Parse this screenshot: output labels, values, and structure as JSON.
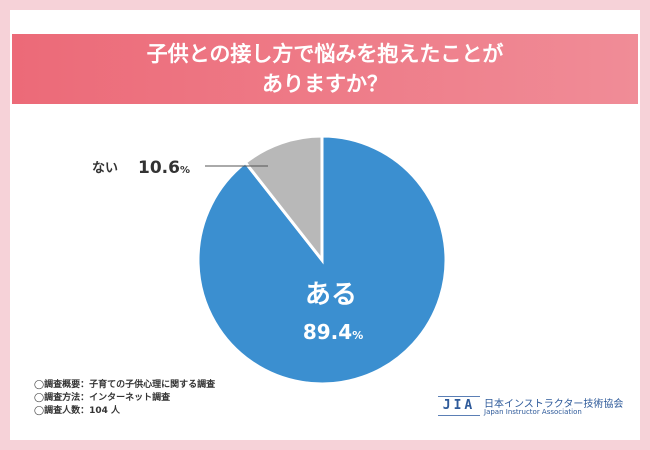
{
  "title_lines": [
    "子供との接し方で悩みを抱えたことが",
    "ありますか？"
  ],
  "chart_data": {
    "type": "pie",
    "start_angle_deg": 0,
    "direction": "clockwise",
    "slices": [
      {
        "label": "ある",
        "value": 89.4,
        "unit": "%",
        "color": "#3b8fd0",
        "label_color": "#ffffff"
      },
      {
        "label": "ない",
        "value": 10.6,
        "unit": "%",
        "color": "#b8b8b8",
        "label_color": "#333333"
      }
    ]
  },
  "footnotes": [
    "◯調査概要：子育ての子供心理に関する調査",
    "◯調査方法：インターネット調査",
    "◯調査人数：104 人"
  ],
  "logo": {
    "mark": "JIA",
    "name_ja": "日本インストラクター技術協会",
    "name_en": "Japan  Instructor  Association"
  },
  "colors": {
    "background": "#f6d2d8",
    "banner": "#ec6a78",
    "logo": "#2e5a9a"
  }
}
